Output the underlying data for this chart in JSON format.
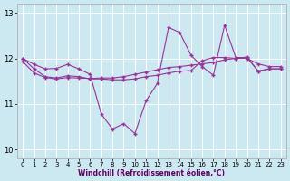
{
  "xlabel": "Windchill (Refroidissement éolien,°C)",
  "bg_color": "#cce8f0",
  "line_color": "#993399",
  "ylim": [
    9.8,
    13.2
  ],
  "xlim": [
    -0.5,
    23.5
  ],
  "yticks": [
    10,
    11,
    12,
    13
  ],
  "xticks": [
    0,
    1,
    2,
    3,
    4,
    5,
    6,
    7,
    8,
    9,
    10,
    11,
    12,
    13,
    14,
    15,
    16,
    17,
    18,
    19,
    20,
    21,
    22,
    23
  ],
  "s1": [
    12.0,
    11.87,
    11.77,
    11.78,
    11.87,
    11.77,
    11.65,
    10.78,
    10.45,
    10.57,
    10.35,
    11.07,
    11.45,
    12.68,
    12.57,
    12.07,
    11.82,
    11.63,
    12.73,
    12.02,
    12.02,
    11.72,
    11.77,
    11.77
  ],
  "s2": [
    11.93,
    11.68,
    11.58,
    11.55,
    11.58,
    11.57,
    11.56,
    11.57,
    11.57,
    11.6,
    11.65,
    11.7,
    11.75,
    11.8,
    11.82,
    11.85,
    11.88,
    11.91,
    11.97,
    12.0,
    12.0,
    11.88,
    11.82,
    11.82
  ],
  "s3": [
    12.0,
    11.77,
    11.6,
    11.57,
    11.62,
    11.6,
    11.55,
    11.55,
    11.53,
    11.53,
    11.55,
    11.6,
    11.63,
    11.68,
    11.72,
    11.73,
    11.95,
    12.02,
    12.02,
    12.0,
    12.03,
    11.72,
    11.77,
    11.77
  ]
}
